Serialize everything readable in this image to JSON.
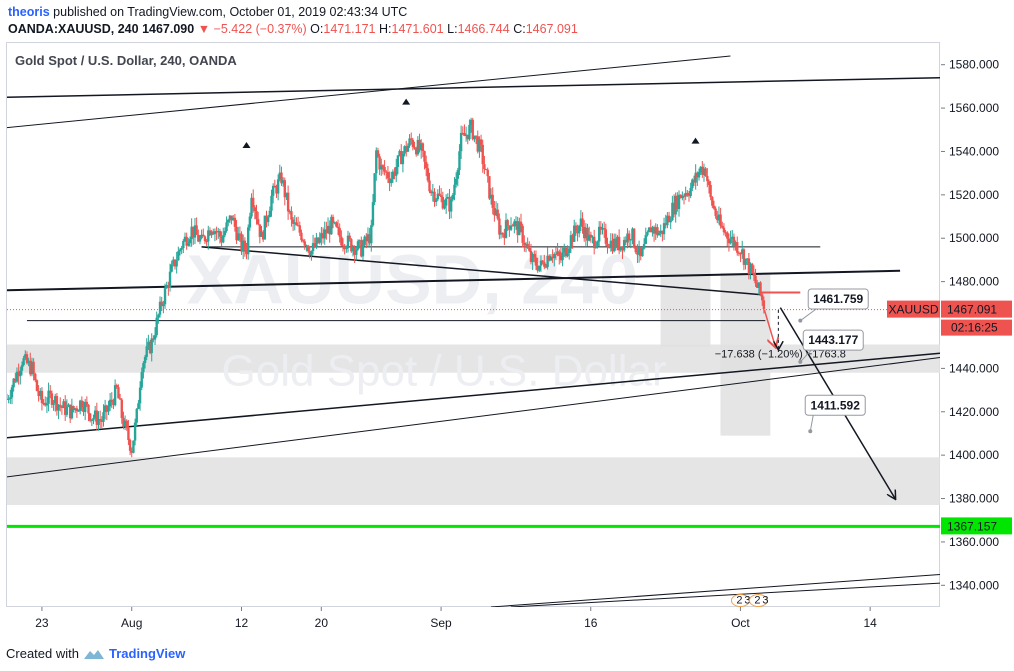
{
  "header": {
    "author": "theoris",
    "published_text": "published on TradingView.com, October 01, 2019 02:43:34 UTC",
    "symbol_tf": "OANDA:XAUUSD, 240",
    "last": "1467.090",
    "change": "−5.422 (−0.37%)",
    "o_label": "O:",
    "o": "1471.171",
    "h_label": "H:",
    "h": "1471.601",
    "l_label": "L:",
    "l": "1466.744",
    "c_label": "C:",
    "c": "1467.091"
  },
  "chart_title": "Gold Spot / U.S. Dollar, 240, OANDA",
  "watermark": {
    "line1": "XAUUSD, 240",
    "line2": "Gold Spot / U.S. Dollar"
  },
  "footer": {
    "created_with": "Created with",
    "brand": "TradingView"
  },
  "colors": {
    "up": "#26a69a",
    "down": "#ef5350",
    "support": "#00e600",
    "zone": "#e0e0e0",
    "accent": "#2962ff"
  },
  "chart_data": {
    "type": "candlestick",
    "title": "Gold Spot / U.S. Dollar, 240, OANDA",
    "ylim": [
      1330,
      1590
    ],
    "y_ticks": [
      1340,
      1360,
      1380,
      1400,
      1420,
      1440,
      1460,
      1480,
      1500,
      1520,
      1540,
      1560,
      1580
    ],
    "y_tick_labels": [
      "1340.000",
      "1360.000",
      "1380.000",
      "1400.000",
      "1420.000",
      "1440.000",
      "1460.000",
      "1480.000",
      "1500.000",
      "1520.000",
      "1540.000",
      "1560.000",
      "1580.000"
    ],
    "x_ticks": [
      {
        "label": "23",
        "day": -9
      },
      {
        "label": "Aug",
        "day": 0
      },
      {
        "label": "12",
        "day": 11
      },
      {
        "label": "20",
        "day": 19
      },
      {
        "label": "Sep",
        "day": 31
      },
      {
        "label": "16",
        "day": 46
      },
      {
        "label": "Oct",
        "day": 61
      },
      {
        "label": "14",
        "day": 74
      }
    ],
    "x_domain_days": [
      -12.5,
      81
    ],
    "last_price": {
      "label": "XAUUSD",
      "value": "1467.091",
      "price": 1467.091,
      "countdown": "02:16:25"
    },
    "support_line": {
      "label": "1367.157",
      "price": 1367.157
    },
    "price_path": [
      [
        -12.5,
        1426
      ],
      [
        -12,
        1432
      ],
      [
        -11,
        1444
      ],
      [
        -10,
        1440
      ],
      [
        -9.5,
        1430
      ],
      [
        -9,
        1424
      ],
      [
        -8,
        1427
      ],
      [
        -7,
        1422
      ],
      [
        -6,
        1420
      ],
      [
        -5,
        1425
      ],
      [
        -4,
        1418
      ],
      [
        -3,
        1416
      ],
      [
        -2,
        1425
      ],
      [
        -1.5,
        1430
      ],
      [
        -1,
        1418
      ],
      [
        -0.5,
        1410
      ],
      [
        0,
        1403
      ],
      [
        0.5,
        1418
      ],
      [
        1,
        1442
      ],
      [
        2,
        1452
      ],
      [
        3,
        1470
      ],
      [
        4,
        1485
      ],
      [
        5,
        1497
      ],
      [
        6,
        1504
      ],
      [
        7,
        1498
      ],
      [
        8,
        1506
      ],
      [
        9,
        1500
      ],
      [
        10,
        1510
      ],
      [
        11,
        1496
      ],
      [
        11.5,
        1495
      ],
      [
        12,
        1522
      ],
      [
        13,
        1500
      ],
      [
        14,
        1519
      ],
      [
        15,
        1528
      ],
      [
        16,
        1507
      ],
      [
        17,
        1502
      ],
      [
        18,
        1494
      ],
      [
        19,
        1500
      ],
      [
        20,
        1506
      ],
      [
        21,
        1500
      ],
      [
        22,
        1497
      ],
      [
        23,
        1495
      ],
      [
        24,
        1502
      ],
      [
        24.5,
        1540
      ],
      [
        25,
        1532
      ],
      [
        26,
        1528
      ],
      [
        27,
        1538
      ],
      [
        28,
        1545
      ],
      [
        29,
        1540
      ],
      [
        30,
        1522
      ],
      [
        31,
        1518
      ],
      [
        32,
        1515
      ],
      [
        32.5,
        1530
      ],
      [
        33,
        1545
      ],
      [
        34,
        1551
      ],
      [
        35,
        1540
      ],
      [
        36,
        1518
      ],
      [
        37,
        1502
      ],
      [
        38,
        1508
      ],
      [
        39,
        1503
      ],
      [
        40,
        1490
      ],
      [
        41,
        1487
      ],
      [
        42,
        1494
      ],
      [
        43,
        1490
      ],
      [
        44,
        1500
      ],
      [
        45,
        1507
      ],
      [
        46,
        1498
      ],
      [
        47,
        1502
      ],
      [
        48,
        1498
      ],
      [
        49,
        1497
      ],
      [
        50,
        1503
      ],
      [
        51,
        1490
      ],
      [
        52,
        1505
      ],
      [
        53,
        1502
      ],
      [
        54,
        1512
      ],
      [
        55,
        1520
      ],
      [
        56,
        1523
      ],
      [
        57,
        1532
      ],
      [
        57.5,
        1532
      ],
      [
        58,
        1518
      ],
      [
        59,
        1505
      ],
      [
        60,
        1500
      ],
      [
        61,
        1495
      ],
      [
        62,
        1485
      ],
      [
        63,
        1474
      ],
      [
        63.5,
        1467
      ]
    ],
    "pivot_markers": [
      {
        "day": 11.5,
        "price": 1543
      },
      {
        "day": 27.5,
        "price": 1563
      },
      {
        "day": 56.5,
        "price": 1545
      }
    ],
    "trendlines": [
      {
        "from": [
          -12.5,
          1565
        ],
        "to": [
          81,
          1574
        ],
        "width": 1.5
      },
      {
        "from": [
          -12.5,
          1551
        ],
        "to": [
          60,
          1584
        ],
        "width": 1
      },
      {
        "from": [
          7,
          1496
        ],
        "to": [
          63,
          1474
        ],
        "width": 1.5
      },
      {
        "from": [
          -12.5,
          1476
        ],
        "to": [
          77,
          1485
        ],
        "width": 2
      },
      {
        "from": [
          -12.5,
          1408
        ],
        "to": [
          81,
          1447
        ],
        "width": 1.5
      },
      {
        "from": [
          -12.5,
          1390
        ],
        "to": [
          81,
          1445
        ],
        "width": 1
      },
      {
        "from": [
          36,
          1330
        ],
        "to": [
          81,
          1345
        ],
        "width": 1
      },
      {
        "from": [
          38,
          1330
        ],
        "to": [
          81,
          1341
        ],
        "width": 1
      }
    ],
    "horizontal_segments": [
      {
        "from_day": 7,
        "to_day": 69,
        "price": 1496
      },
      {
        "from_day": -10.5,
        "to_day": 63.5,
        "price": 1462
      }
    ],
    "zones": [
      {
        "from_day": -12.5,
        "to_day": 81,
        "low": 1438,
        "high": 1451
      },
      {
        "from_day": -12.5,
        "to_day": 81,
        "low": 1377,
        "high": 1399
      },
      {
        "from_day": 53,
        "to_day": 58,
        "low": 1450,
        "high": 1496
      },
      {
        "from_day": 59,
        "to_day": 64,
        "low": 1409,
        "high": 1484
      }
    ],
    "red_levels": [
      {
        "from_day": 63,
        "to_day": 67,
        "price": 1475
      }
    ],
    "projection": {
      "from": [
        65,
        1468
      ],
      "to": [
        76.5,
        1380
      ]
    },
    "red_arrow": {
      "from": [
        63.4,
        1467
      ],
      "to": [
        64.5,
        1450
      ]
    },
    "measure": {
      "text": "−17.638 (−1.20%) −1763.8",
      "from": [
        64.8,
        1467
      ],
      "to": [
        64.8,
        1449
      ],
      "anchor": [
        65,
        1445
      ]
    },
    "callouts": [
      {
        "label": "1461.759",
        "box_day": 70.8,
        "box_price": 1472,
        "target_day": 67,
        "target_price": 1462
      },
      {
        "label": "1443.177",
        "box_day": 70.3,
        "box_price": 1453,
        "target_day": 67,
        "target_price": 1443
      },
      {
        "label": "1411.592",
        "box_day": 70.5,
        "box_price": 1423,
        "target_day": 68,
        "target_price": 1411
      }
    ],
    "cycle_marks": [
      {
        "day": 61,
        "price": 1333,
        "labels": [
          "2",
          "3"
        ]
      },
      {
        "day": 62.8,
        "price": 1333,
        "labels": [
          "2",
          "3"
        ]
      }
    ]
  }
}
